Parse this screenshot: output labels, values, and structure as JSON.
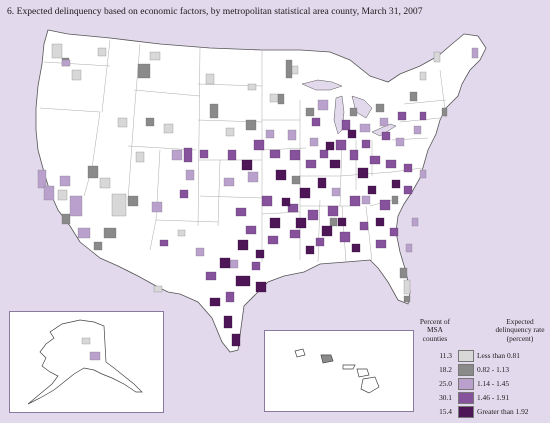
{
  "title": "6.  Expected delinquency based on economic factors, by metropolitan statistical area county, March 31, 2007",
  "legend": {
    "left_header": "Percent of MSA counties",
    "right_header": "Expected delinquency rate (percent)",
    "classes": [
      {
        "percent": "11.3",
        "label": "Less than 0.81",
        "color": "#d8d8d8"
      },
      {
        "percent": "18.2",
        "label": "0.82 - 1.13",
        "color": "#8a8a8a"
      },
      {
        "percent": "25.0",
        "label": "1.14 - 1.45",
        "color": "#b9a0cd"
      },
      {
        "percent": "30.1",
        "label": "1.46 - 1.91",
        "color": "#85529b"
      },
      {
        "percent": "15.4",
        "label": "Greater than 1.92",
        "color": "#4e1656"
      }
    ]
  },
  "colors": {
    "background": "#e3d9ec",
    "land": "#ffffff",
    "border": "#777777"
  }
}
